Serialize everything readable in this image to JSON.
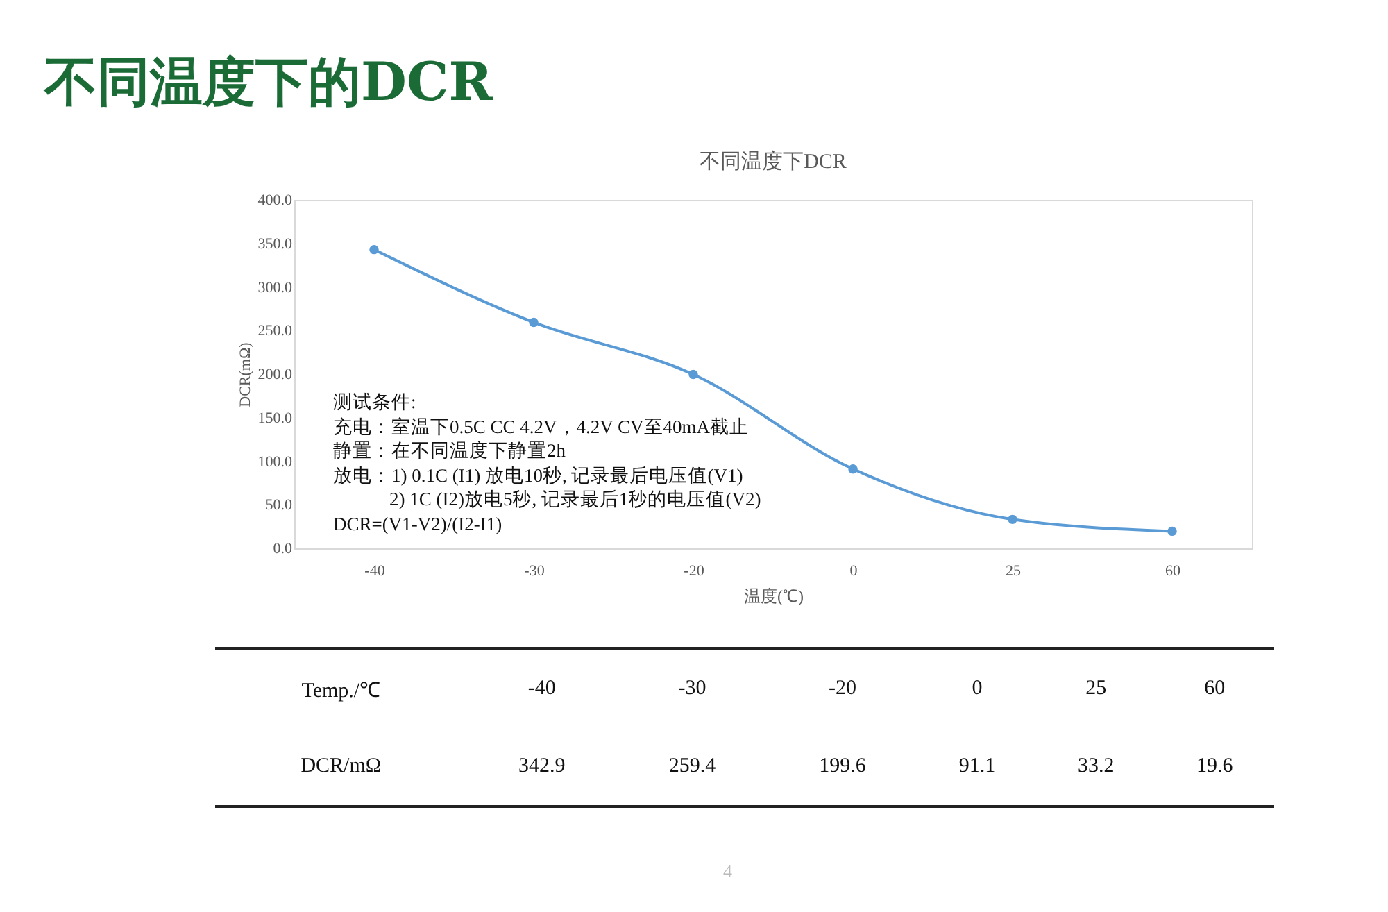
{
  "chart_data": {
    "type": "line",
    "title": "不同温度下的DCR",
    "subtitle": "不同温度下DCR",
    "xlabel": "温度(℃)",
    "ylabel": "DCR(mΩ)",
    "categories": [
      "-40",
      "-30",
      "-20",
      "0",
      "25",
      "60"
    ],
    "series": [
      {
        "color": "#5b9bd5",
        "values": [
          342.9,
          259.4,
          199.6,
          91.1,
          33.2,
          19.6
        ]
      }
    ],
    "ylim": [
      0,
      400
    ],
    "yticks": [
      {
        "value": 0,
        "label": "0.0"
      },
      {
        "value": 50,
        "label": "50.0"
      },
      {
        "value": 100,
        "label": "100.0"
      },
      {
        "value": 150,
        "label": "150.0"
      },
      {
        "value": 200,
        "label": "200.0"
      },
      {
        "value": 250,
        "label": "250.0"
      },
      {
        "value": 300,
        "label": "300.0"
      },
      {
        "value": 350,
        "label": "350.0"
      },
      {
        "value": 400,
        "label": "400.0"
      }
    ],
    "marker": "circle",
    "line_style": "solid",
    "annotations": [
      "测试条件:",
      "充电：室温下0.5C CC 4.2V，4.2V CV至40mA截止",
      "静置：在不同温度下静置2h",
      "放电：1) 0.1C (I1) 放电10秒, 记录最后电压值(V1)",
      "            2) 1C (I2)放电5秒, 记录最后1秒的电压值(V2)",
      "DCR=(V1-V2)/(I2-I1)",
      "Temp./℃",
      "DCR/mΩ",
      "342.9",
      "259.4",
      "199.6",
      "91.1",
      "33.2",
      "19.6",
      "4"
    ]
  }
}
